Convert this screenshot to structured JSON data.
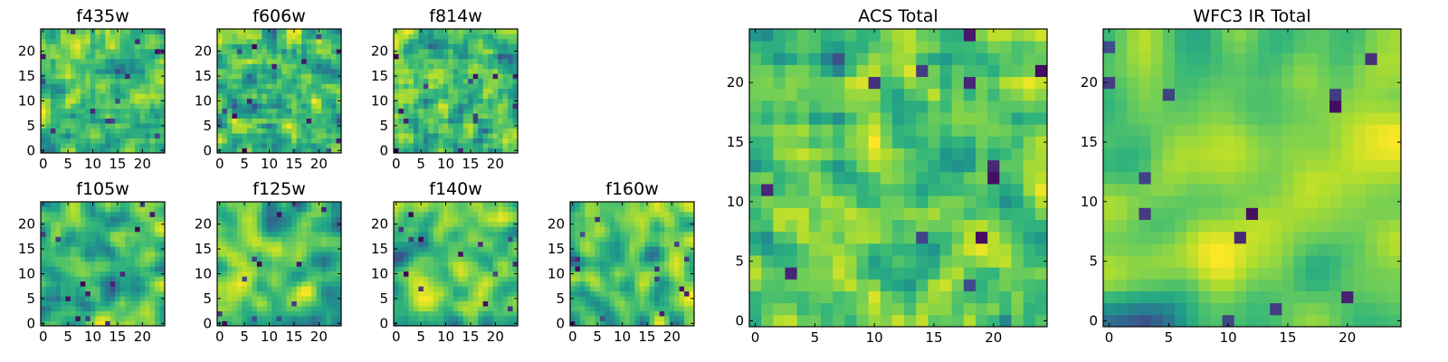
{
  "chart_data": [
    {
      "type": "heatmap",
      "title": "f435w",
      "grid_size": 25,
      "x_ticks": [
        0,
        5,
        10,
        15,
        20
      ],
      "y_ticks": [
        0,
        5,
        10,
        15,
        20
      ],
      "xlim": [
        -0.5,
        24.5
      ],
      "ylim": [
        -0.5,
        24.5
      ],
      "colormap": "viridis",
      "grid": false,
      "smooth": 0.15,
      "seed": 11
    },
    {
      "type": "heatmap",
      "title": "f606w",
      "grid_size": 25,
      "x_ticks": [
        0,
        5,
        10,
        15,
        20
      ],
      "y_ticks": [
        0,
        5,
        10,
        15,
        20
      ],
      "xlim": [
        -0.5,
        24.5
      ],
      "ylim": [
        -0.5,
        24.5
      ],
      "colormap": "viridis",
      "grid": false,
      "smooth": 0.15,
      "seed": 23
    },
    {
      "type": "heatmap",
      "title": "f814w",
      "grid_size": 25,
      "x_ticks": [
        0,
        5,
        10,
        15,
        20
      ],
      "y_ticks": [
        0,
        5,
        10,
        15,
        20
      ],
      "xlim": [
        -0.5,
        24.5
      ],
      "ylim": [
        -0.5,
        24.5
      ],
      "colormap": "viridis",
      "grid": false,
      "smooth": 0.15,
      "seed": 37
    },
    {
      "type": "heatmap",
      "title": "f105w",
      "grid_size": 25,
      "x_ticks": [
        0,
        5,
        10,
        15,
        20
      ],
      "y_ticks": [
        0,
        5,
        10,
        15,
        20
      ],
      "xlim": [
        -0.5,
        24.5
      ],
      "ylim": [
        -0.5,
        24.5
      ],
      "colormap": "viridis",
      "grid": false,
      "smooth": 0.5,
      "seed": 41
    },
    {
      "type": "heatmap",
      "title": "f125w",
      "grid_size": 25,
      "x_ticks": [
        0,
        5,
        10,
        15,
        20
      ],
      "y_ticks": [
        0,
        5,
        10,
        15,
        20
      ],
      "xlim": [
        -0.5,
        24.5
      ],
      "ylim": [
        -0.5,
        24.5
      ],
      "colormap": "viridis",
      "grid": false,
      "smooth": 0.5,
      "seed": 53
    },
    {
      "type": "heatmap",
      "title": "f140w",
      "grid_size": 25,
      "x_ticks": [
        0,
        5,
        10,
        15,
        20
      ],
      "y_ticks": [
        0,
        5,
        10,
        15,
        20
      ],
      "xlim": [
        -0.5,
        24.5
      ],
      "ylim": [
        -0.5,
        24.5
      ],
      "colormap": "viridis",
      "grid": false,
      "smooth": 0.5,
      "seed": 67
    },
    {
      "type": "heatmap",
      "title": "f160w",
      "grid_size": 25,
      "x_ticks": [
        0,
        5,
        10,
        15,
        20
      ],
      "y_ticks": [
        0,
        5,
        10,
        15,
        20
      ],
      "xlim": [
        -0.5,
        24.5
      ],
      "ylim": [
        -0.5,
        24.5
      ],
      "colormap": "viridis",
      "grid": false,
      "smooth": 0.5,
      "seed": 79
    },
    {
      "type": "heatmap",
      "title": "ACS Total",
      "grid_size": 25,
      "x_ticks": [
        0,
        5,
        10,
        15,
        20
      ],
      "y_ticks": [
        0,
        5,
        10,
        15,
        20
      ],
      "xlim": [
        -0.5,
        24.5
      ],
      "ylim": [
        -0.5,
        24.5
      ],
      "colormap": "viridis",
      "grid": false,
      "smooth": 0.3,
      "seed": 89
    },
    {
      "type": "heatmap",
      "title": "WFC3 IR Total",
      "grid_size": 25,
      "x_ticks": [
        0,
        5,
        10,
        15,
        20
      ],
      "y_ticks": [
        0,
        5,
        10,
        15,
        20
      ],
      "xlim": [
        -0.5,
        24.5
      ],
      "ylim": [
        -0.5,
        24.5
      ],
      "colormap": "viridis",
      "grid": false,
      "smooth": 0.75,
      "seed": 97
    }
  ]
}
